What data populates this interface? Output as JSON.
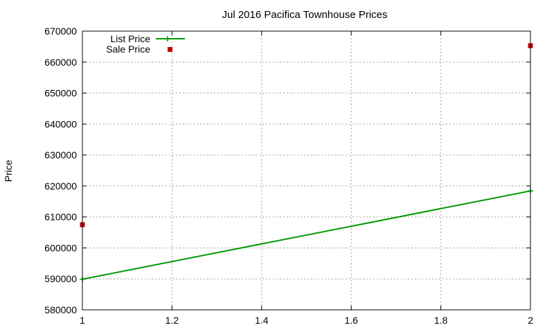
{
  "chart_data": {
    "type": "line",
    "title": "Jul 2016 Pacifica Townhouse Prices",
    "xlabel": "",
    "ylabel": "Price",
    "xlim": [
      1,
      2
    ],
    "ylim": [
      580000,
      670000
    ],
    "x_ticks": [
      "1",
      "1.2",
      "1.4",
      "1.6",
      "1.8",
      "2"
    ],
    "x_tick_values": [
      1,
      1.2,
      1.4,
      1.6,
      1.8,
      2
    ],
    "y_ticks": [
      "580000",
      "590000",
      "600000",
      "610000",
      "620000",
      "630000",
      "640000",
      "650000",
      "660000",
      "670000"
    ],
    "y_tick_values": [
      580000,
      590000,
      600000,
      610000,
      620000,
      630000,
      640000,
      650000,
      660000,
      670000
    ],
    "grid": true,
    "legend_position": "top-left",
    "series": [
      {
        "name": "List Price",
        "style": "line-with-plus-markers",
        "color": "#009900",
        "points": [
          {
            "x": 1,
            "y": 589900
          },
          {
            "x": 2,
            "y": 618400
          }
        ]
      },
      {
        "name": "Sale Price",
        "style": "square-markers",
        "color": "#c00000",
        "points": [
          {
            "x": 1,
            "y": 607500
          },
          {
            "x": 2,
            "y": 665300
          }
        ]
      }
    ]
  }
}
